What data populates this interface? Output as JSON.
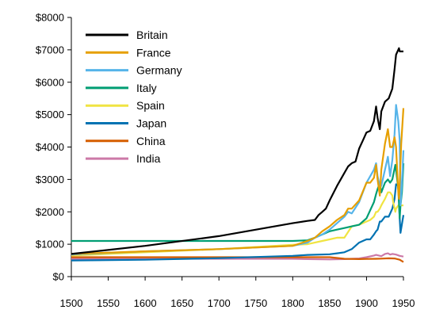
{
  "chart_data": {
    "type": "line",
    "title": "",
    "xlabel": "",
    "ylabel": "",
    "xlim": [
      1500,
      1950
    ],
    "ylim": [
      0,
      8000
    ],
    "x_ticks": [
      1500,
      1550,
      1600,
      1650,
      1700,
      1750,
      1800,
      1850,
      1900,
      1950
    ],
    "x_tick_labels": [
      "1500",
      "1550",
      "1600",
      "1650",
      "1700",
      "1750",
      "1800",
      "1850",
      "1900",
      "1950"
    ],
    "y_ticks": [
      0,
      1000,
      2000,
      3000,
      4000,
      5000,
      6000,
      7000,
      8000
    ],
    "y_tick_labels": [
      "$0",
      "$1000",
      "$2000",
      "$3000",
      "$4000",
      "$5000",
      "$6000",
      "$7000",
      "$8000"
    ],
    "grid": false,
    "legend_position": "top-left",
    "series": [
      {
        "name": "Britain",
        "color": "#000000",
        "x": [
          1500,
          1600,
          1700,
          1800,
          1820,
          1830,
          1835,
          1840,
          1845,
          1850,
          1860,
          1870,
          1875,
          1880,
          1885,
          1890,
          1895,
          1900,
          1905,
          1910,
          1913,
          1915,
          1918,
          1920,
          1925,
          1930,
          1935,
          1938,
          1940,
          1944,
          1945,
          1950
        ],
        "y": [
          700,
          950,
          1250,
          1650,
          1720,
          1750,
          1900,
          2000,
          2100,
          2350,
          2800,
          3200,
          3400,
          3500,
          3550,
          3950,
          4200,
          4450,
          4500,
          4800,
          5250,
          4900,
          4550,
          5100,
          5400,
          5500,
          5800,
          6400,
          6850,
          7050,
          6950,
          6950
        ]
      },
      {
        "name": "France",
        "color": "#E69F00",
        "x": [
          1500,
          1600,
          1700,
          1800,
          1820,
          1830,
          1840,
          1850,
          1860,
          1870,
          1875,
          1880,
          1890,
          1900,
          1905,
          1910,
          1913,
          1915,
          1918,
          1920,
          1925,
          1929,
          1932,
          1935,
          1938,
          1940,
          1943,
          1944,
          1945,
          1947,
          1950
        ],
        "y": [
          700,
          780,
          850,
          950,
          1100,
          1200,
          1400,
          1550,
          1750,
          1900,
          2100,
          2100,
          2350,
          2900,
          2900,
          3050,
          3450,
          3000,
          2500,
          3300,
          4100,
          4550,
          4000,
          4000,
          4300,
          4000,
          2600,
          2400,
          2900,
          4100,
          5200
        ]
      },
      {
        "name": "Germany",
        "color": "#56B4E9",
        "x": [
          1500,
          1600,
          1700,
          1800,
          1820,
          1830,
          1840,
          1850,
          1860,
          1870,
          1875,
          1880,
          1890,
          1900,
          1905,
          1910,
          1913,
          1915,
          1918,
          1920,
          1925,
          1929,
          1932,
          1935,
          1938,
          1940,
          1943,
          1945,
          1946,
          1948,
          1950
        ],
        "y": [
          680,
          780,
          850,
          950,
          1050,
          1200,
          1300,
          1450,
          1650,
          1850,
          2000,
          1950,
          2300,
          2900,
          3100,
          3300,
          3500,
          3100,
          2800,
          2800,
          3300,
          3700,
          3100,
          3600,
          4400,
          5300,
          4800,
          4200,
          2200,
          2900,
          3900
        ]
      },
      {
        "name": "Italy",
        "color": "#009E73",
        "x": [
          1500,
          1800,
          1820,
          1830,
          1840,
          1850,
          1860,
          1870,
          1880,
          1890,
          1900,
          1910,
          1913,
          1915,
          1918,
          1920,
          1925,
          1929,
          1932,
          1935,
          1939,
          1940,
          1943,
          1945,
          1946,
          1948,
          1950
        ],
        "y": [
          1100,
          1100,
          1120,
          1200,
          1300,
          1400,
          1450,
          1500,
          1550,
          1600,
          1800,
          2300,
          2550,
          2700,
          2900,
          2600,
          2900,
          3000,
          2900,
          3000,
          3450,
          3300,
          2700,
          1800,
          2200,
          2600,
          3500
        ]
      },
      {
        "name": "Spain",
        "color": "#F0E442",
        "x": [
          1500,
          1600,
          1700,
          1800,
          1820,
          1840,
          1850,
          1860,
          1870,
          1880,
          1890,
          1900,
          1905,
          1910,
          1913,
          1915,
          1918,
          1920,
          1925,
          1929,
          1932,
          1935,
          1936,
          1939,
          1940,
          1943,
          1945,
          1950
        ],
        "y": [
          650,
          750,
          850,
          980,
          1000,
          1100,
          1150,
          1200,
          1200,
          1550,
          1600,
          1700,
          1750,
          1850,
          2000,
          2000,
          2100,
          2200,
          2400,
          2600,
          2600,
          2500,
          2300,
          2000,
          2100,
          2200,
          2200,
          2200
        ]
      },
      {
        "name": "Japan",
        "color": "#0072B2",
        "x": [
          1500,
          1600,
          1700,
          1800,
          1820,
          1850,
          1860,
          1870,
          1880,
          1890,
          1895,
          1900,
          1905,
          1910,
          1913,
          1915,
          1918,
          1920,
          1925,
          1930,
          1935,
          1938,
          1940,
          1943,
          1944,
          1945,
          1946,
          1950
        ],
        "y": [
          500,
          520,
          570,
          640,
          670,
          690,
          720,
          750,
          850,
          1050,
          1100,
          1150,
          1150,
          1300,
          1400,
          1450,
          1700,
          1700,
          1850,
          1850,
          2100,
          2400,
          2850,
          2800,
          2400,
          1800,
          1350,
          1900
        ]
      },
      {
        "name": "China",
        "color": "#D55E00",
        "x": [
          1500,
          1600,
          1700,
          1800,
          1820,
          1850,
          1870,
          1890,
          1900,
          1913,
          1920,
          1930,
          1938,
          1945,
          1950
        ],
        "y": [
          600,
          600,
          600,
          600,
          600,
          600,
          550,
          540,
          545,
          550,
          555,
          565,
          560,
          520,
          450
        ]
      },
      {
        "name": "India",
        "color": "#CC79A7",
        "x": [
          1500,
          1600,
          1700,
          1800,
          1820,
          1850,
          1870,
          1890,
          1900,
          1910,
          1913,
          1920,
          1925,
          1929,
          1932,
          1935,
          1938,
          1940,
          1945,
          1950
        ],
        "y": [
          550,
          550,
          550,
          550,
          540,
          530,
          540,
          560,
          600,
          650,
          670,
          630,
          700,
          720,
          680,
          700,
          690,
          680,
          640,
          620
        ]
      }
    ]
  }
}
